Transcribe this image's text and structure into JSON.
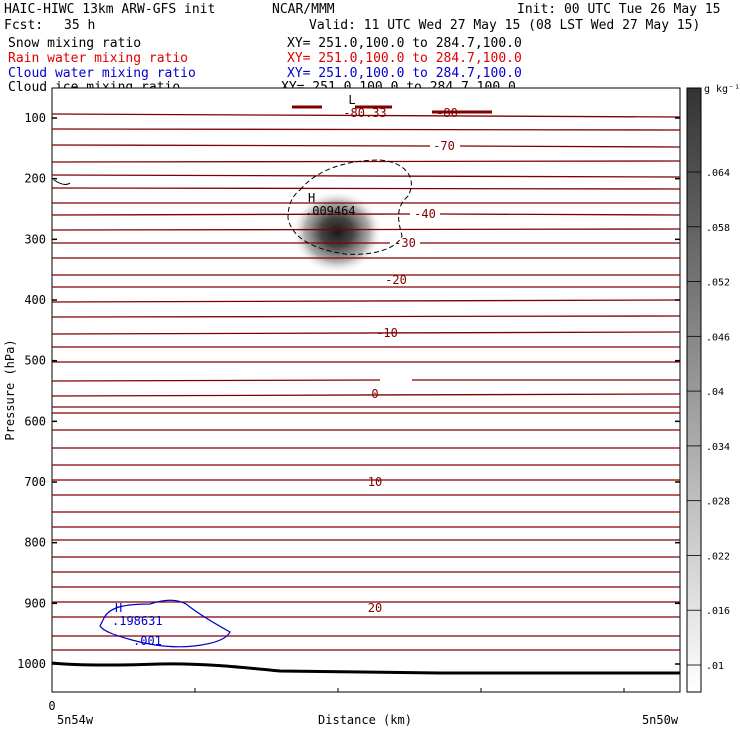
{
  "header": {
    "title_left": "HAIC-HIWC 13km ARW-GFS init",
    "title_center": "NCAR/MMM",
    "init": "Init: 00 UTC Tue 26 May 15",
    "fcst_label": "Fcst:",
    "fcst_value": "35 h",
    "valid": "Valid: 11 UTC Wed 27 May 15 (08 LST Wed 27 May 15)"
  },
  "fields": [
    {
      "name": "Snow mixing ratio",
      "xy": "XY= 251.0,100.0 to 284.7,100.0",
      "color": "#000000"
    },
    {
      "name": "Rain water mixing ratio",
      "xy": "XY= 251.0,100.0 to 284.7,100.0",
      "color": "#e00000"
    },
    {
      "name": "Cloud water mixing ratio",
      "xy": "XY= 251.0,100.0 to 284.7,100.0",
      "color": "#0000cc"
    },
    {
      "name": "Cloud ice mixing ratio",
      "xy": "XY= 251.0,100.0 to 284.7,100.0",
      "color": "#000000"
    }
  ],
  "chart_data": {
    "type": "contour",
    "ylabel": "Pressure (hPa)",
    "xlabel": "Distance (km)",
    "ylim": [
      1050,
      70
    ],
    "yticks": [
      100,
      200,
      300,
      400,
      500,
      600,
      700,
      800,
      900,
      1000
    ],
    "x_start_label": "0",
    "x_left_label": "5n54w",
    "x_right_label": "5n50w",
    "temperature_contour_labels": [
      "-80.33",
      "-80",
      "-70",
      "-40",
      "-30",
      "-20",
      "-10",
      "0",
      "10",
      "20"
    ],
    "snow_max_label": "H",
    "snow_max_value": ".009464",
    "snow_top_label": "L",
    "cloud_water_max_label": "H",
    "cloud_water_max_value": ".198631",
    "cloud_water_contour_label": ".001",
    "colorbar": {
      "unit": "g kg⁻¹",
      "ticks": [
        ".064",
        ".058",
        ".052",
        ".046",
        ".04",
        ".034",
        ".028",
        ".022",
        ".016",
        ".01"
      ]
    },
    "colors": {
      "isotherm": "#800000",
      "cloud_water": "#0000cc",
      "terrain": "#000000"
    }
  }
}
